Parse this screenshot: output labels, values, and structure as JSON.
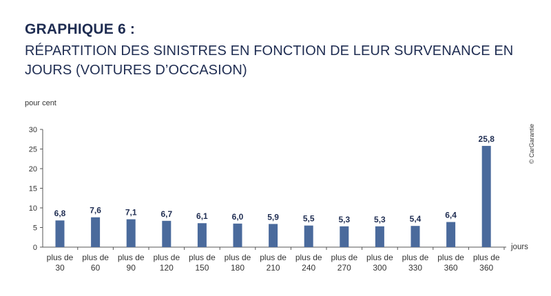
{
  "header": {
    "title": "GRAPHIQUE 6 :",
    "subtitle_line1": "RÉPARTITION DES SINISTRES EN FONCTION DE LEUR SURVENANCE EN",
    "subtitle_line2": "JOURS (VOITURES D’OCCASION)"
  },
  "chart_data": {
    "type": "bar",
    "ylabel": "pour cent",
    "xlabel": "jours",
    "ylim": [
      0,
      30
    ],
    "yticks": [
      0,
      5,
      10,
      15,
      20,
      25,
      30
    ],
    "grid": false,
    "categories": [
      [
        "plus de",
        "30"
      ],
      [
        "plus de",
        "60"
      ],
      [
        "plus de",
        "90"
      ],
      [
        "plus de",
        "120"
      ],
      [
        "plus de",
        "150"
      ],
      [
        "plus de",
        "180"
      ],
      [
        "plus de",
        "210"
      ],
      [
        "plus de",
        "240"
      ],
      [
        "plus de",
        "270"
      ],
      [
        "plus de",
        "300"
      ],
      [
        "plus de",
        "330"
      ],
      [
        "plus de",
        "360"
      ],
      [
        "plus de",
        "360"
      ]
    ],
    "values": [
      6.8,
      7.6,
      7.1,
      6.7,
      6.1,
      6.0,
      5.9,
      5.5,
      5.3,
      5.3,
      5.4,
      6.4,
      25.8
    ],
    "value_labels": [
      "6,8",
      "7,6",
      "7,1",
      "6,7",
      "6,1",
      "6,0",
      "5,9",
      "5,5",
      "5,3",
      "5,3",
      "5,4",
      "6,4",
      "25,8"
    ],
    "bar_color": "#4a6a9c",
    "text_color": "#1f2d52",
    "source_note": "© CarGarantie"
  }
}
